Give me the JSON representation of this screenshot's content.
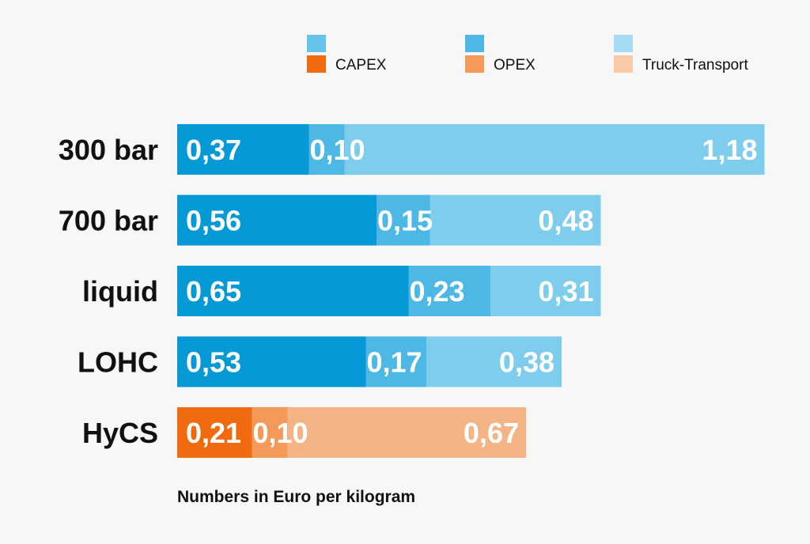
{
  "chart_data": {
    "type": "bar",
    "orientation": "horizontal",
    "stacked": true,
    "categories": [
      "300 bar",
      "700 bar",
      "liquid",
      "LOHC",
      "HyCS"
    ],
    "series": [
      {
        "name": "CAPEX",
        "values": [
          0.37,
          0.56,
          0.65,
          0.53,
          0.21
        ],
        "labels": [
          "0,37",
          "0,56",
          "0,65",
          "0,53",
          "0,21"
        ]
      },
      {
        "name": "OPEX",
        "values": [
          0.1,
          0.15,
          0.23,
          0.17,
          0.1
        ],
        "labels": [
          "0,10",
          "0,15",
          "0,23",
          "0,17",
          "0,10"
        ]
      },
      {
        "name": "Truck-Transport",
        "values": [
          1.18,
          0.48,
          0.31,
          0.38,
          0.67
        ],
        "labels": [
          "1,18",
          "0,48",
          "0,31",
          "0,38",
          "0,67"
        ]
      }
    ],
    "colors": {
      "blue": [
        "#0599d6",
        "#4db8e6",
        "#7fcdec"
      ],
      "orange": [
        "#f06a10",
        "#f39a5a",
        "#f5b486"
      ],
      "legend_top": [
        "#66c3ea",
        "#4db8e6",
        "#a6dcf3"
      ],
      "legend_bottom": [
        "#f06a10",
        "#f39a5a",
        "#f8cba8"
      ]
    },
    "highlight_category": "HyCS",
    "legend_position": "top-right",
    "grid": false,
    "xlim": [
      0,
      1.65
    ],
    "footnote": "Numbers in Euro per kilogram"
  }
}
